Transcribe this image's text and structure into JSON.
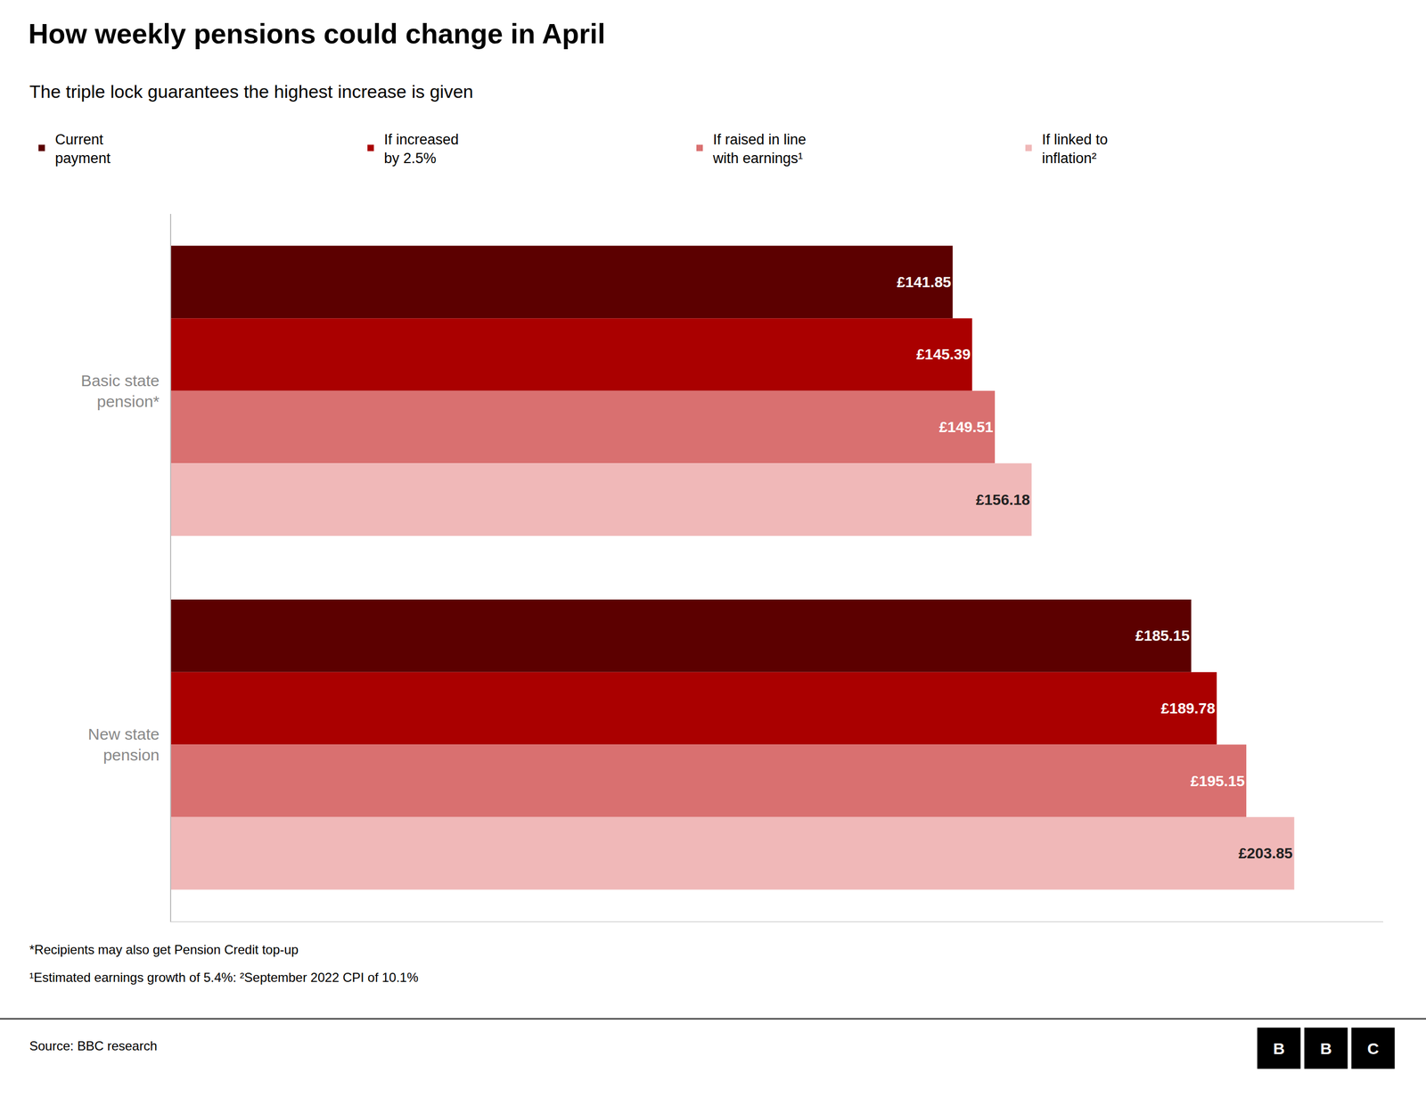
{
  "chart_data": {
    "type": "bar",
    "orientation": "horizontal",
    "title": "How weekly pensions could change in April",
    "subtitle": "The triple lock guarantees the highest increase is given",
    "categories": [
      "Basic state\npension*",
      "New state\npension"
    ],
    "series": [
      {
        "name": "Current\npayment",
        "color": "#5c0000",
        "values": [
          141.85,
          185.15
        ],
        "value_labels": [
          "£141.85",
          "£185.15"
        ]
      },
      {
        "name": "If increased\nby 2.5%",
        "color": "#aa0000",
        "values": [
          145.39,
          189.78
        ],
        "value_labels": [
          "£145.39",
          "£189.78"
        ]
      },
      {
        "name": "If raised in line\nwith earnings¹",
        "color": "#d97070",
        "values": [
          149.51,
          195.15
        ],
        "value_labels": [
          "£149.51",
          "£195.15"
        ]
      },
      {
        "name": "If linked to\ninflation²",
        "color": "#f0b8b8",
        "values": [
          156.18,
          203.85
        ],
        "value_labels": [
          "£156.18",
          "£203.85"
        ]
      }
    ],
    "xlim": [
      0,
      220
    ],
    "grid": false,
    "legend": "top",
    "data_labels": true,
    "tick_labels": "y",
    "annotations": [
      "*Recipients may also get Pension Credit top-up",
      "¹Estimated earnings growth of 5.4%: ²September 2022 CPI of 10.1%",
      "Source: BBC research",
      "BBC"
    ]
  }
}
